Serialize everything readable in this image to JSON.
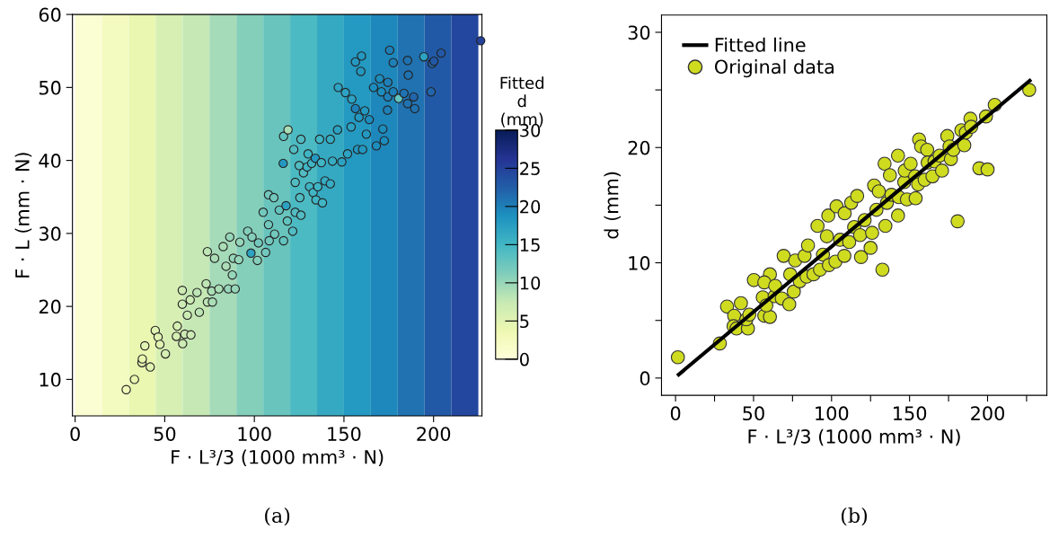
{
  "chart_data": [
    {
      "type": "scatter",
      "title": "(a)",
      "xlabel": "F · L³/3 (1000 mm³ · N)",
      "ylabel": "F · L (mm · N)",
      "clabel": "Fitted\nd\n(mm)",
      "xlim": [
        -1.5,
        227
      ],
      "ylim": [
        5,
        60
      ],
      "xticks": [
        0,
        50,
        100,
        150,
        200
      ],
      "yticks": [
        10,
        20,
        30,
        40,
        50,
        60
      ],
      "clim": [
        0,
        30
      ],
      "cticks": [
        0,
        5,
        10,
        15,
        20,
        25,
        30
      ],
      "grid": false,
      "legend": false,
      "marker": "circle",
      "bands": [
        {
          "axis": "x",
          "from": 0,
          "to": 15,
          "color": "#fbfdd3"
        },
        {
          "axis": "x",
          "from": 15,
          "to": 30,
          "color": "#f3fbc0"
        },
        {
          "axis": "x",
          "from": 30,
          "to": 45,
          "color": "#e9f7b1"
        },
        {
          "axis": "x",
          "from": 45,
          "to": 60,
          "color": "#d7efb3"
        },
        {
          "axis": "x",
          "from": 60,
          "to": 75,
          "color": "#c5e8b4"
        },
        {
          "axis": "x",
          "from": 75,
          "to": 90,
          "color": "#a5dbb8"
        },
        {
          "axis": "x",
          "from": 90,
          "to": 105,
          "color": "#84cfba"
        },
        {
          "axis": "x",
          "from": 105,
          "to": 120,
          "color": "#68c4bd"
        },
        {
          "axis": "x",
          "from": 120,
          "to": 135,
          "color": "#4cbac2"
        },
        {
          "axis": "x",
          "from": 135,
          "to": 150,
          "color": "#36a9c2"
        },
        {
          "axis": "x",
          "from": 150,
          "to": 165,
          "color": "#2499c1"
        },
        {
          "axis": "x",
          "from": 165,
          "to": 180,
          "color": "#1e87bb"
        },
        {
          "axis": "x",
          "from": 180,
          "to": 195,
          "color": "#2072b1"
        },
        {
          "axis": "x",
          "from": 195,
          "to": 210,
          "color": "#2259a6"
        },
        {
          "axis": "x",
          "from": 210,
          "to": 225,
          "color": "#23479e"
        }
      ],
      "x": [
        28.5,
        33.1,
        37.3,
        37.5,
        38.9,
        41.9,
        44.7,
        46.3,
        47.3,
        50.4,
        57,
        56.5,
        60,
        59.8,
        59.8,
        61.2,
        62.6,
        64.2,
        64.6,
        68,
        69.3,
        73.8,
        73.1,
        73.8,
        76.2,
        76.6,
        77.8,
        80.2,
        82.6,
        84.2,
        85.5,
        86.3,
        87.7,
        88.3,
        89.3,
        91.3,
        91.9,
        96.3,
        98.1,
        98.7,
        101.7,
        102.3,
        104.9,
        106.3,
        107.9,
        107.9,
        108.3,
        110.9,
        111.3,
        113.9,
        116.1,
        116.3,
        116.3,
        117.7,
        118.4,
        118.8,
        121.4,
        122,
        122.8,
        122.8,
        125,
        125.4,
        126,
        126,
        127.4,
        129.4,
        130,
        130.8,
        132,
        132.8,
        134,
        134.4,
        135.4,
        136.4,
        137.4,
        138,
        139.4,
        142.4,
        142.4,
        143.6,
        146.4,
        146.8,
        148.8,
        150.8,
        152,
        154,
        154.4,
        156.4,
        156.4,
        157.6,
        158.4,
        159.4,
        159.8,
        160.4,
        161.6,
        162.5,
        164.1,
        166.5,
        168.1,
        169.9,
        170.9,
        171.7,
        172.5,
        174.5,
        174.3,
        174.5,
        175.5,
        177.5,
        177.5,
        180.5,
        183.5,
        185.5,
        185.5,
        185.9,
        188.9,
        189.5,
        194.6,
        198.6,
        199.2,
        200.2,
        204.2,
        226.3
      ],
      "values": [
        8.6,
        10.0,
        12.3,
        12.8,
        14.6,
        11.7,
        16.7,
        15.8,
        14.8,
        13.5,
        17.3,
        15.9,
        14.9,
        22.2,
        20.3,
        16.2,
        18.8,
        20.9,
        16.1,
        21.9,
        19.2,
        27.5,
        23.1,
        20.6,
        22.1,
        20.6,
        26.6,
        22.4,
        28.2,
        25.5,
        22.4,
        29.5,
        24.3,
        26.6,
        22.4,
        26.4,
        28.8,
        30.3,
        27.3,
        29.5,
        26.3,
        28.7,
        32.9,
        27.4,
        35.3,
        31.2,
        29.0,
        34.9,
        29.9,
        33.2,
        39.6,
        43.3,
        29.0,
        33.8,
        31.7,
        44.2,
        30.3,
        41.5,
        37.0,
        32.9,
        39.3,
        34.9,
        42.9,
        32.5,
        38.3,
        39.1,
        40.9,
        36.4,
        39.6,
        35.6,
        40.3,
        34.6,
        36.4,
        42.9,
        39.7,
        34.2,
        37.2,
        42.9,
        36.8,
        39.9,
        44.2,
        50.0,
        39.8,
        49.3,
        40.9,
        44.6,
        48.4,
        47.1,
        53.5,
        41.5,
        45.9,
        52.2,
        54.3,
        41.5,
        46.8,
        43.6,
        45.6,
        50.0,
        42.0,
        51.2,
        49.4,
        44.3,
        42.7,
        50.7,
        46.9,
        48.7,
        55.1,
        53.4,
        49.4,
        48.5,
        49.2,
        53.7,
        47.8,
        51.7,
        48.7,
        47.1,
        54.2,
        49.4,
        53.3,
        53.6,
        54.7,
        56.4
      ],
      "cvalues": [
        3,
        4,
        4,
        4,
        5,
        5,
        5,
        5,
        5,
        6,
        6,
        6,
        7,
        7,
        7,
        7,
        7,
        7,
        7,
        8,
        8,
        8,
        8,
        8,
        9,
        9,
        9,
        9,
        9,
        9,
        10,
        10,
        10,
        10,
        10,
        10,
        10,
        11,
        17,
        11,
        11,
        12,
        12,
        12,
        12,
        12,
        12,
        12,
        12,
        13,
        18,
        13,
        13,
        17,
        13,
        9,
        14,
        14,
        14,
        14,
        14,
        14,
        14,
        14,
        14,
        15,
        15,
        15,
        15,
        15,
        18,
        15,
        15,
        15,
        15,
        15,
        16,
        16,
        16,
        16,
        17,
        17,
        17,
        17,
        17,
        17,
        17,
        20,
        18,
        18,
        18,
        18,
        18,
        18,
        18,
        18,
        19,
        19,
        19,
        19,
        19,
        19,
        19,
        20,
        20,
        20,
        20,
        20,
        20,
        13,
        21,
        21,
        21,
        21,
        22,
        21,
        17,
        22,
        22,
        23,
        23,
        25
      ]
    },
    {
      "type": "scatter",
      "title": "(b)",
      "xlabel": "F · L³/3 (1000 mm³ · N)",
      "ylabel": "d (mm)",
      "xlim": [
        -9,
        238
      ],
      "ylim": [
        -1.5,
        31.5
      ],
      "xticks": [
        0,
        {
          "value": 25,
          "label": null
        },
        50,
        {
          "value": 75,
          "label": null
        },
        100,
        {
          "value": 125,
          "label": null
        },
        150,
        {
          "value": 175,
          "label": null
        },
        200,
        {
          "value": 225,
          "label": null
        }
      ],
      "yticks": [
        0,
        {
          "value": 5,
          "label": null
        },
        10,
        {
          "value": 15,
          "label": null
        },
        20,
        {
          "value": 25,
          "label": null
        },
        30
      ],
      "grid": false,
      "legend": "top left",
      "series": [
        {
          "type": "line",
          "name": "Fitted line",
          "color": "#000000",
          "x": [
            2,
            227
          ],
          "values": [
            0.3,
            25.8
          ]
        },
        {
          "name": "Original data",
          "color": "#cfdb1f",
          "marker": "circle",
          "x": [
            1.5,
            28.4,
            33,
            37.6,
            37.2,
            41.9,
            39.1,
            46.4,
            45.4,
            47.3,
            50.2,
            56.9,
            55.9,
            60.5,
            60.5,
            56.9,
            58.2,
            63.5,
            63.9,
            68.1,
            69.3,
            72.9,
            73.5,
            75.8,
            76.7,
            79.6,
            82.7,
            84.9,
            84,
            88.4,
            91,
            92.6,
            94.5,
            97,
            98.3,
            97.9,
            103.2,
            102.5,
            105.5,
            108.2,
            108.4,
            111.3,
            112.6,
            116.4,
            114.5,
            118.9,
            118.3,
            121.2,
            125,
            126,
            127.3,
            128.8,
            130.3,
            132.6,
            134.5,
            135.5,
            134,
            137.4,
            138.4,
            142.6,
            142.6,
            143.1,
            146.6,
            148.3,
            146.9,
            150.7,
            153.9,
            153.6,
            156.1,
            157.4,
            155.5,
            159.7,
            161.3,
            161.6,
            164.7,
            166,
            169.3,
            170.8,
            174.2,
            176.5,
            175.6,
            178.1,
            180.8,
            183.2,
            185.1,
            186.1,
            189,
            189.5,
            194.7,
            199,
            200,
            204.6,
            226.7
          ],
          "values": [
            1.8,
            3.0,
            6.2,
            5.4,
            4.5,
            6.5,
            4.3,
            4.3,
            5.1,
            5.5,
            8.5,
            5.4,
            7.0,
            5.3,
            9.0,
            8.3,
            6.3,
            7.1,
            8.0,
            6.9,
            10.6,
            6.4,
            9.0,
            7.5,
            10.2,
            8.4,
            10.6,
            11.5,
            8.8,
            9.0,
            13.2,
            9.4,
            10.7,
            12.3,
            9.8,
            14.1,
            14.9,
            10.1,
            12.0,
            10.6,
            14.3,
            11.8,
            15.2,
            15.8,
            13.1,
            10.5,
            12.4,
            13.7,
            11.3,
            12.6,
            16.7,
            14.6,
            16.2,
            9.4,
            13.2,
            15.2,
            18.6,
            17.6,
            15.9,
            14.1,
            19.3,
            15.7,
            17.0,
            15.5,
            18.0,
            18.6,
            15.6,
            17.5,
            20.7,
            20.1,
            16.8,
            17.2,
            19.8,
            18.7,
            17.5,
            18.8,
            19.3,
            18.0,
            21.0,
            19.0,
            20.1,
            19.8,
            13.6,
            21.5,
            20.2,
            21.3,
            22.5,
            21.8,
            18.2,
            22.7,
            18.1,
            23.7,
            25.0
          ]
        }
      ]
    }
  ]
}
